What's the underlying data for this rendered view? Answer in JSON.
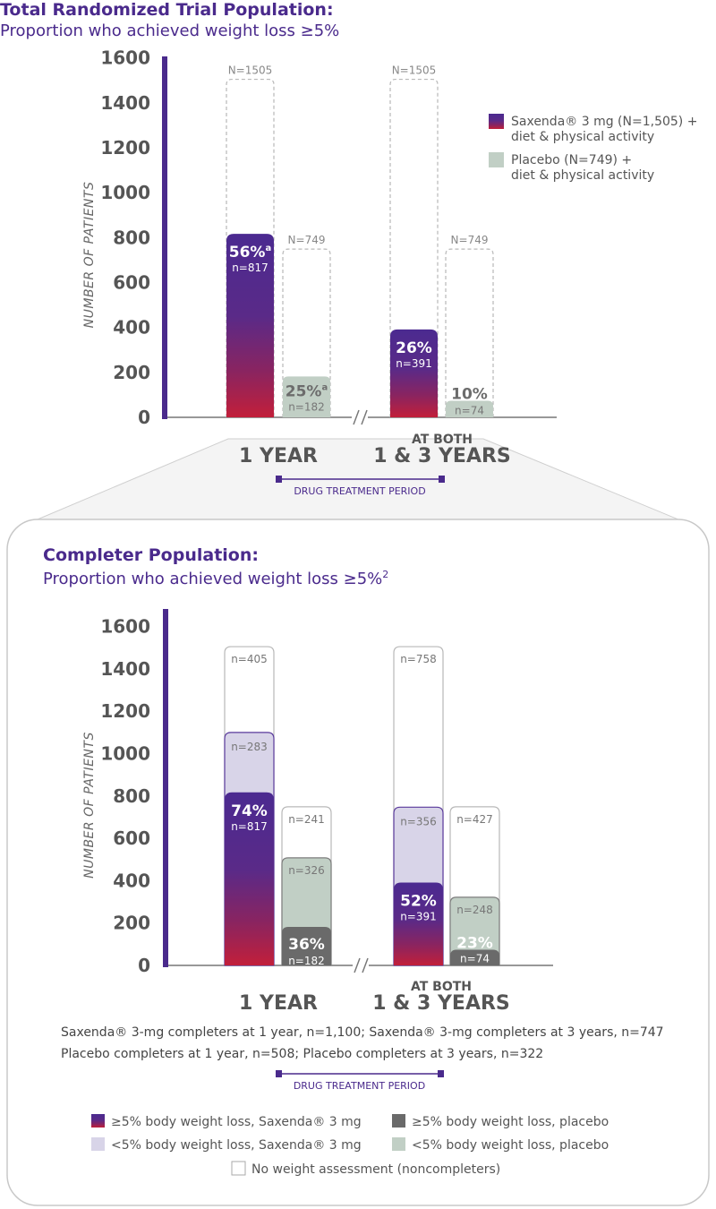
{
  "chart_data": [
    {
      "type": "bar",
      "title": "Total Randomized Trial Population:",
      "subtitle": "Proportion who achieved weight loss ≥5%",
      "ylabel": "NUMBER OF PATIENTS",
      "ylim": [
        0,
        1600
      ],
      "yticks": [
        "0",
        "200",
        "400",
        "600",
        "800",
        "1000",
        "1200",
        "1400",
        "1600"
      ],
      "categories": [
        {
          "label": "1 YEAR",
          "label_small": ""
        },
        {
          "label": "1 & 3 YEARS",
          "label_small": "AT BOTH"
        }
      ],
      "series": [
        {
          "name": "Saxenda® 3 mg (N=1,505) + diet & physical activity",
          "legend_line1": "Saxenda® 3 mg (N=1,505) +",
          "legend_line2": "diet & physical activity",
          "color": "#4a2a8c",
          "values": [
            817,
            391
          ],
          "pct": [
            "56%",
            "26%"
          ],
          "sup": [
            "a",
            ""
          ],
          "n_labels": [
            "n=817",
            "n=391"
          ],
          "totals": [
            1505,
            1505
          ],
          "total_labels": [
            "N=1505",
            "N=1505"
          ]
        },
        {
          "name": "Placebo (N=749) + diet & physical activity",
          "legend_line1": "Placebo (N=749) +",
          "legend_line2": "diet & physical activity",
          "color": "#c1cfc5",
          "values": [
            182,
            74
          ],
          "pct": [
            "25%",
            "10%"
          ],
          "sup": [
            "a",
            ""
          ],
          "n_labels": [
            "n=182",
            "n=74"
          ],
          "totals": [
            749,
            749
          ],
          "total_labels": [
            "N=749",
            "N=749"
          ]
        }
      ],
      "period_label": "DRUG TREATMENT PERIOD"
    },
    {
      "type": "bar",
      "title": "Completer Population:",
      "subtitle": "Proportion who achieved weight loss ≥5%",
      "subtitle_sup": "2",
      "ylabel": "NUMBER OF PATIENTS",
      "ylim": [
        0,
        1600
      ],
      "yticks": [
        "0",
        "200",
        "400",
        "600",
        "800",
        "1000",
        "1200",
        "1400",
        "1600"
      ],
      "categories": [
        {
          "label": "1 YEAR",
          "label_small": ""
        },
        {
          "label": "1 & 3 YEARS",
          "label_small": "AT BOTH"
        }
      ],
      "series": [
        {
          "name": "≥5% body weight loss, Saxenda® 3 mg",
          "color": "#4a2a8c",
          "values": [
            817,
            391
          ],
          "pct": [
            "74%",
            "52%"
          ],
          "n_labels": [
            "n=817",
            "n=391"
          ]
        },
        {
          "name": "<5% body weight loss, Saxenda® 3 mg",
          "color": "#d8d4e8",
          "values": [
            283,
            356
          ],
          "n_labels": [
            "n=283",
            "n=356"
          ]
        },
        {
          "name": "No weight assessment (noncompleters) – Saxenda® 3 mg",
          "color": "#ffffff",
          "values": [
            405,
            758
          ],
          "n_labels": [
            "n=405",
            "n=758"
          ]
        },
        {
          "name": "≥5% body weight loss, placebo",
          "color": "#6a6a6a",
          "values": [
            182,
            74
          ],
          "pct": [
            "36%",
            "23%"
          ],
          "n_labels": [
            "n=182",
            "n=74"
          ]
        },
        {
          "name": "<5% body weight loss, placebo",
          "color": "#c1cfc5",
          "values": [
            326,
            248
          ],
          "n_labels": [
            "n=326",
            "n=248"
          ]
        },
        {
          "name": "No weight assessment (noncompleters) – placebo",
          "color": "#ffffff",
          "values": [
            241,
            427
          ],
          "n_labels": [
            "n=241",
            "n=427"
          ]
        }
      ],
      "notes": [
        "Saxenda® 3-mg completers at 1 year, n=1,100; Saxenda® 3-mg completers at 3 years, n=747",
        "Placebo completers at 1 year, n=508; Placebo completers at 3 years, n=322"
      ],
      "period_label": "DRUG TREATMENT PERIOD",
      "legend": [
        {
          "label": "≥5% body weight loss, Saxenda® 3 mg",
          "swatch": "purple-gradient"
        },
        {
          "label": "≥5% body weight loss, placebo",
          "swatch": "#6a6a6a"
        },
        {
          "label": "<5% body weight loss, Saxenda® 3 mg",
          "swatch": "#d8d4e8"
        },
        {
          "label": "<5% body weight loss, placebo",
          "swatch": "#c1cfc5"
        },
        {
          "label": "No weight assessment (noncompleters)",
          "swatch": "#ffffff"
        }
      ]
    }
  ]
}
